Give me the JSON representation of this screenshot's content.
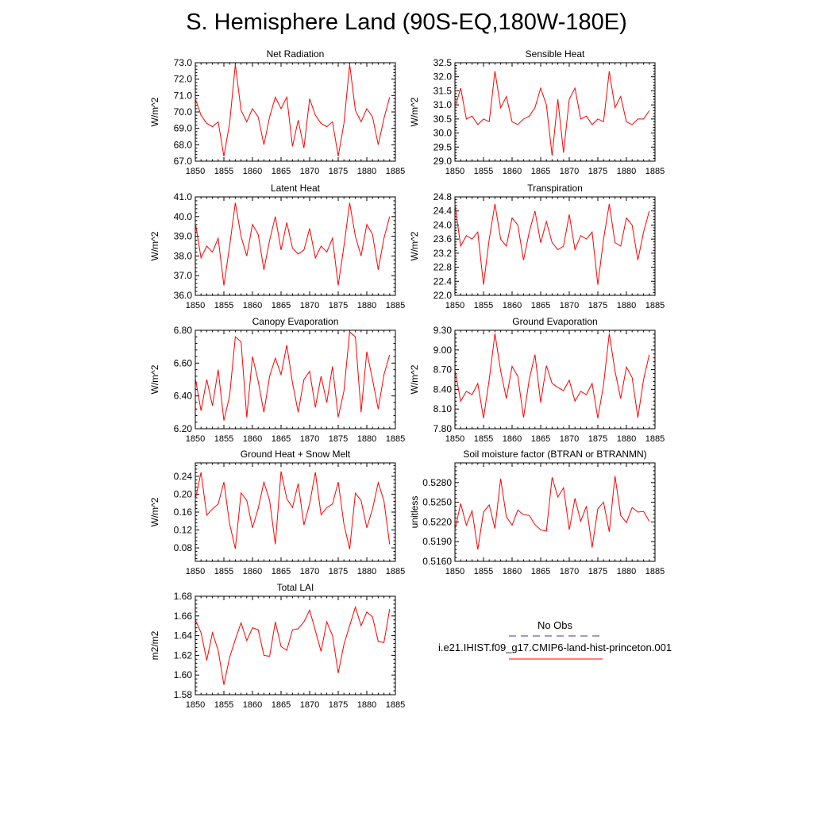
{
  "title": "S. Hemisphere Land (90S-EQ,180W-180E)",
  "colors": {
    "series": "#ff0000",
    "obs": "#3a3a9a"
  },
  "legend": {
    "obs_label": "No Obs",
    "model_label": "i.e21.IHIST.f09_g17.CMIP6-land-hist-princeton.001"
  },
  "chart_data": [
    {
      "type": "line",
      "title": "Net Radiation",
      "ylabel": "W/m^2",
      "xlim": [
        1850,
        1885
      ],
      "ylim": [
        67.0,
        73.0
      ],
      "xticks": [
        1850,
        1855,
        1860,
        1865,
        1870,
        1875,
        1880,
        1885
      ],
      "yticks": [
        "67.0",
        "68.0",
        "69.0",
        "70.0",
        "71.0",
        "72.0",
        "73.0"
      ],
      "x": [
        1850,
        1851,
        1852,
        1853,
        1854,
        1855,
        1856,
        1857,
        1858,
        1859,
        1860,
        1861,
        1862,
        1863,
        1864,
        1865,
        1866,
        1867,
        1868,
        1869,
        1870,
        1871,
        1872,
        1873,
        1874,
        1875,
        1876,
        1877,
        1878,
        1879,
        1880,
        1881,
        1882,
        1883,
        1884
      ],
      "series": [
        {
          "values": [
            70.8,
            69.8,
            69.3,
            69.1,
            69.4,
            67.3,
            69.3,
            72.9,
            70.1,
            69.4,
            70.2,
            69.7,
            68.0,
            69.7,
            70.9,
            70.2,
            70.9,
            67.9,
            69.5,
            67.8,
            70.8,
            69.8,
            69.3,
            69.1,
            69.4,
            67.3,
            69.3,
            72.9,
            70.1,
            69.4,
            70.2,
            69.7,
            68.0,
            69.6,
            70.9
          ]
        }
      ]
    },
    {
      "type": "line",
      "title": "Sensible Heat",
      "ylabel": "W/m^2",
      "xlim": [
        1850,
        1885
      ],
      "ylim": [
        29.0,
        32.5
      ],
      "xticks": [
        1850,
        1855,
        1860,
        1865,
        1870,
        1875,
        1880,
        1885
      ],
      "yticks": [
        "29.0",
        "29.5",
        "30.0",
        "30.5",
        "31.0",
        "31.5",
        "32.0",
        "32.5"
      ],
      "x": [
        1850,
        1851,
        1852,
        1853,
        1854,
        1855,
        1856,
        1857,
        1858,
        1859,
        1860,
        1861,
        1862,
        1863,
        1864,
        1865,
        1866,
        1867,
        1868,
        1869,
        1870,
        1871,
        1872,
        1873,
        1874,
        1875,
        1876,
        1877,
        1878,
        1879,
        1880,
        1881,
        1882,
        1883,
        1884
      ],
      "series": [
        {
          "values": [
            30.9,
            31.6,
            30.5,
            30.6,
            30.3,
            30.5,
            30.4,
            32.2,
            30.9,
            31.3,
            30.4,
            30.3,
            30.5,
            30.6,
            30.9,
            31.6,
            31.0,
            29.2,
            31.2,
            29.3,
            31.2,
            31.6,
            30.5,
            30.6,
            30.3,
            30.5,
            30.4,
            32.2,
            30.9,
            31.3,
            30.4,
            30.3,
            30.5,
            30.5,
            30.8
          ]
        }
      ]
    },
    {
      "type": "line",
      "title": "Latent Heat",
      "ylabel": "W/m^2",
      "xlim": [
        1850,
        1885
      ],
      "ylim": [
        36.0,
        41.0
      ],
      "xticks": [
        1850,
        1855,
        1860,
        1865,
        1870,
        1875,
        1880,
        1885
      ],
      "yticks": [
        "36.0",
        "37.0",
        "38.0",
        "39.0",
        "40.0",
        "41.0"
      ],
      "x": [
        1850,
        1851,
        1852,
        1853,
        1854,
        1855,
        1856,
        1857,
        1858,
        1859,
        1860,
        1861,
        1862,
        1863,
        1864,
        1865,
        1866,
        1867,
        1868,
        1869,
        1870,
        1871,
        1872,
        1873,
        1874,
        1875,
        1876,
        1877,
        1878,
        1879,
        1880,
        1881,
        1882,
        1883,
        1884
      ],
      "series": [
        {
          "values": [
            39.7,
            37.9,
            38.5,
            38.2,
            38.9,
            36.5,
            38.5,
            40.7,
            39.0,
            38.0,
            39.6,
            39.1,
            37.3,
            38.8,
            40.0,
            38.3,
            39.7,
            38.4,
            38.1,
            38.3,
            39.4,
            37.9,
            38.5,
            38.2,
            38.9,
            36.5,
            38.5,
            40.7,
            39.0,
            38.0,
            39.6,
            39.1,
            37.3,
            38.9,
            40.0
          ]
        }
      ]
    },
    {
      "type": "line",
      "title": "Transpiration",
      "ylabel": "W/m^2",
      "xlim": [
        1850,
        1885
      ],
      "ylim": [
        22.0,
        24.8
      ],
      "xticks": [
        1850,
        1855,
        1860,
        1865,
        1870,
        1875,
        1880,
        1885
      ],
      "yticks": [
        "22.0",
        "22.4",
        "22.8",
        "23.2",
        "23.6",
        "24.0",
        "24.4",
        "24.8"
      ],
      "x": [
        1850,
        1851,
        1852,
        1853,
        1854,
        1855,
        1856,
        1857,
        1858,
        1859,
        1860,
        1861,
        1862,
        1863,
        1864,
        1865,
        1866,
        1867,
        1868,
        1869,
        1870,
        1871,
        1872,
        1873,
        1874,
        1875,
        1876,
        1877,
        1878,
        1879,
        1880,
        1881,
        1882,
        1883,
        1884
      ],
      "series": [
        {
          "values": [
            24.6,
            23.4,
            23.7,
            23.6,
            23.8,
            22.3,
            23.6,
            24.6,
            23.6,
            23.4,
            24.2,
            24.0,
            23.0,
            23.8,
            24.4,
            23.5,
            24.1,
            23.5,
            23.3,
            23.4,
            24.3,
            23.3,
            23.7,
            23.6,
            23.8,
            22.3,
            23.6,
            24.6,
            23.5,
            23.4,
            24.2,
            24.0,
            23.0,
            23.8,
            24.4
          ]
        }
      ]
    },
    {
      "type": "line",
      "title": "Canopy Evaporation",
      "ylabel": "W/m^2",
      "xlim": [
        1850,
        1885
      ],
      "ylim": [
        6.2,
        6.8
      ],
      "xticks": [
        1850,
        1855,
        1860,
        1865,
        1870,
        1875,
        1880,
        1885
      ],
      "yticks": [
        "6.20",
        "6.40",
        "6.60",
        "6.80"
      ],
      "x": [
        1850,
        1851,
        1852,
        1853,
        1854,
        1855,
        1856,
        1857,
        1858,
        1859,
        1860,
        1861,
        1862,
        1863,
        1864,
        1865,
        1866,
        1867,
        1868,
        1869,
        1870,
        1871,
        1872,
        1873,
        1874,
        1875,
        1876,
        1877,
        1878,
        1879,
        1880,
        1881,
        1882,
        1883,
        1884
      ],
      "series": [
        {
          "values": [
            6.51,
            6.31,
            6.5,
            6.34,
            6.56,
            6.25,
            6.4,
            6.76,
            6.73,
            6.27,
            6.64,
            6.49,
            6.3,
            6.52,
            6.63,
            6.53,
            6.71,
            6.48,
            6.3,
            6.5,
            6.55,
            6.33,
            6.52,
            6.36,
            6.58,
            6.27,
            6.43,
            6.79,
            6.76,
            6.3,
            6.67,
            6.5,
            6.32,
            6.53,
            6.65
          ]
        }
      ]
    },
    {
      "type": "line",
      "title": "Ground Evaporation",
      "ylabel": "W/m^2",
      "xlim": [
        1850,
        1885
      ],
      "ylim": [
        7.8,
        9.3
      ],
      "xticks": [
        1850,
        1855,
        1860,
        1865,
        1870,
        1875,
        1880,
        1885
      ],
      "yticks": [
        "7.80",
        "8.10",
        "8.40",
        "8.70",
        "9.00",
        "9.30"
      ],
      "x": [
        1850,
        1851,
        1852,
        1853,
        1854,
        1855,
        1856,
        1857,
        1858,
        1859,
        1860,
        1861,
        1862,
        1863,
        1864,
        1865,
        1866,
        1867,
        1868,
        1869,
        1870,
        1871,
        1872,
        1873,
        1874,
        1875,
        1876,
        1877,
        1878,
        1879,
        1880,
        1881,
        1882,
        1883,
        1884
      ],
      "series": [
        {
          "values": [
            8.7,
            8.22,
            8.37,
            8.32,
            8.49,
            7.96,
            8.55,
            9.25,
            8.68,
            8.26,
            8.75,
            8.6,
            7.97,
            8.55,
            8.93,
            8.2,
            8.76,
            8.49,
            8.43,
            8.38,
            8.54,
            8.22,
            8.37,
            8.32,
            8.49,
            7.96,
            8.47,
            9.25,
            8.68,
            8.26,
            8.74,
            8.58,
            7.97,
            8.55,
            8.93
          ]
        }
      ]
    },
    {
      "type": "line",
      "title": "Ground Heat + Snow Melt",
      "ylabel": "W/m^2",
      "xlim": [
        1850,
        1885
      ],
      "ylim": [
        0.05,
        0.27
      ],
      "xticks": [
        1850,
        1855,
        1860,
        1865,
        1870,
        1875,
        1880,
        1885
      ],
      "yticks": [
        "0.08",
        "0.12",
        "0.16",
        "0.20",
        "0.24"
      ],
      "x": [
        1850,
        1851,
        1852,
        1853,
        1854,
        1855,
        1856,
        1857,
        1858,
        1859,
        1860,
        1861,
        1862,
        1863,
        1864,
        1865,
        1866,
        1867,
        1868,
        1869,
        1870,
        1871,
        1872,
        1873,
        1874,
        1875,
        1876,
        1877,
        1878,
        1879,
        1880,
        1881,
        1882,
        1883,
        1884
      ],
      "series": [
        {
          "values": [
            0.188,
            0.249,
            0.153,
            0.167,
            0.178,
            0.227,
            0.134,
            0.078,
            0.203,
            0.186,
            0.125,
            0.168,
            0.227,
            0.186,
            0.088,
            0.251,
            0.19,
            0.17,
            0.224,
            0.131,
            0.179,
            0.249,
            0.154,
            0.17,
            0.178,
            0.227,
            0.133,
            0.077,
            0.202,
            0.186,
            0.125,
            0.167,
            0.226,
            0.185,
            0.088
          ]
        }
      ]
    },
    {
      "type": "line",
      "title": "Soil moisture factor (BTRAN or BTRANMN)",
      "ylabel": "unitless",
      "xlim": [
        1850,
        1885
      ],
      "ylim": [
        0.516,
        0.531
      ],
      "xticks": [
        1850,
        1855,
        1860,
        1865,
        1870,
        1875,
        1880,
        1885
      ],
      "yticks": [
        "0.5160",
        "0.5190",
        "0.5220",
        "0.5250",
        "0.5280"
      ],
      "x": [
        1850,
        1851,
        1852,
        1853,
        1854,
        1855,
        1856,
        1857,
        1858,
        1859,
        1860,
        1861,
        1862,
        1863,
        1864,
        1865,
        1866,
        1867,
        1868,
        1869,
        1870,
        1871,
        1872,
        1873,
        1874,
        1875,
        1876,
        1877,
        1878,
        1879,
        1880,
        1881,
        1882,
        1883,
        1884
      ],
      "series": [
        {
          "values": [
            0.5208,
            0.5248,
            0.5215,
            0.5237,
            0.5178,
            0.5235,
            0.5246,
            0.521,
            0.5286,
            0.5228,
            0.5215,
            0.5238,
            0.5231,
            0.523,
            0.5216,
            0.5208,
            0.5206,
            0.5288,
            0.5258,
            0.5272,
            0.5208,
            0.5256,
            0.5221,
            0.5244,
            0.5181,
            0.524,
            0.525,
            0.5205,
            0.529,
            0.523,
            0.5219,
            0.5242,
            0.5235,
            0.5236,
            0.5221
          ]
        }
      ]
    },
    {
      "type": "line",
      "title": "Total LAI",
      "ylabel": "m2/m2",
      "xlim": [
        1850,
        1885
      ],
      "ylim": [
        1.58,
        1.68
      ],
      "xticks": [
        1850,
        1855,
        1860,
        1865,
        1870,
        1875,
        1880,
        1885
      ],
      "yticks": [
        "1.58",
        "1.60",
        "1.62",
        "1.64",
        "1.66",
        "1.68"
      ],
      "x": [
        1850,
        1851,
        1852,
        1853,
        1854,
        1855,
        1856,
        1857,
        1858,
        1859,
        1860,
        1861,
        1862,
        1863,
        1864,
        1865,
        1866,
        1867,
        1868,
        1869,
        1870,
        1871,
        1872,
        1873,
        1874,
        1875,
        1876,
        1877,
        1878,
        1879,
        1880,
        1881,
        1882,
        1883,
        1884
      ],
      "series": [
        {
          "values": [
            1.656,
            1.643,
            1.615,
            1.643,
            1.625,
            1.59,
            1.618,
            1.636,
            1.653,
            1.635,
            1.648,
            1.646,
            1.62,
            1.619,
            1.654,
            1.629,
            1.625,
            1.646,
            1.647,
            1.654,
            1.666,
            1.645,
            1.624,
            1.654,
            1.64,
            1.602,
            1.631,
            1.65,
            1.669,
            1.65,
            1.664,
            1.659,
            1.634,
            1.633,
            1.667
          ]
        }
      ]
    }
  ]
}
